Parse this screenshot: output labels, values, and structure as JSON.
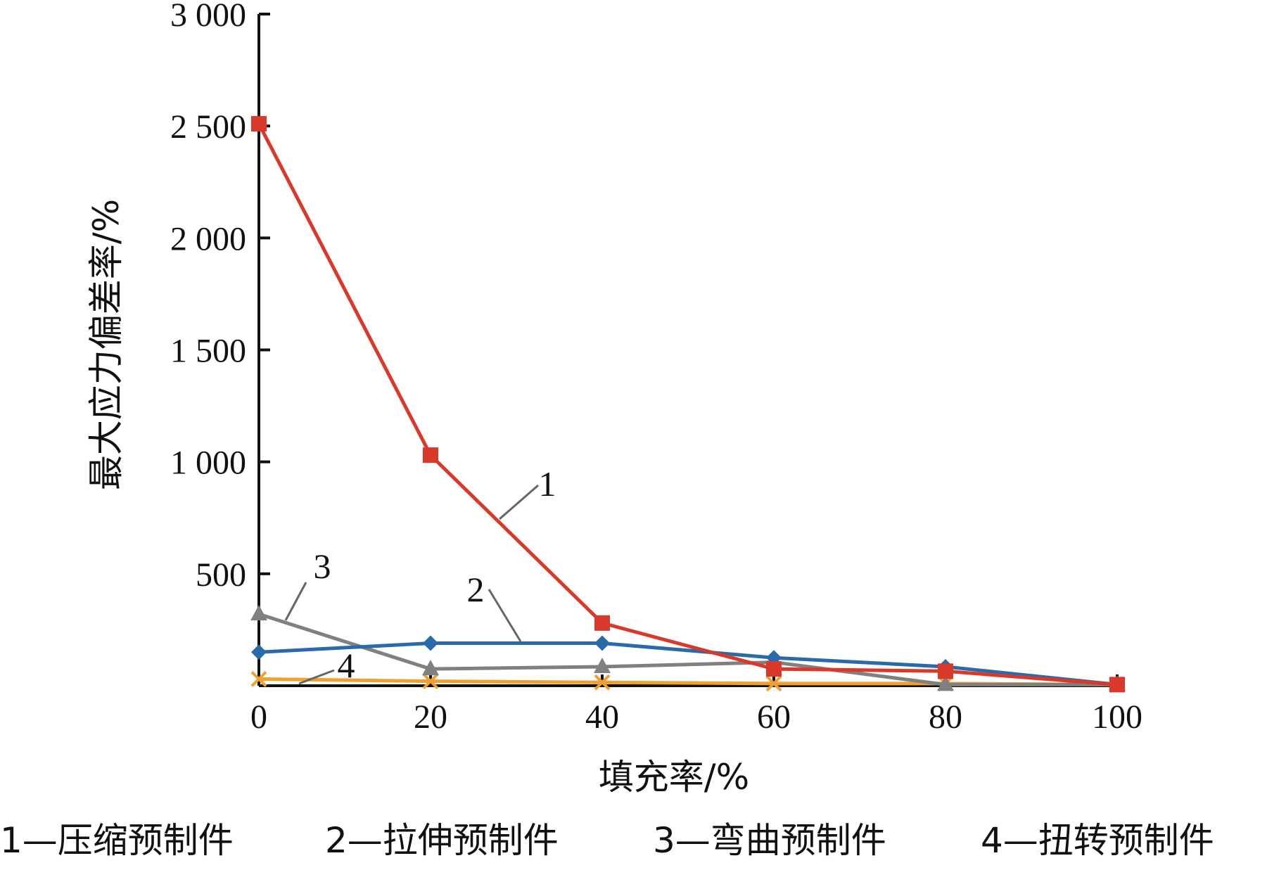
{
  "chart_data": {
    "type": "line",
    "title": "",
    "xlabel": "填充率/%",
    "ylabel": "最大应力偏差率/%",
    "xlim": [
      0,
      100
    ],
    "ylim": [
      0,
      3000
    ],
    "x": [
      0,
      20,
      40,
      60,
      80,
      100
    ],
    "x_ticks": [
      "0",
      "20",
      "40",
      "60",
      "80",
      "100"
    ],
    "y_ticks": [
      "500",
      "1 000",
      "1 500",
      "2 000",
      "2 500",
      "3 000"
    ],
    "y_tick_values": [
      500,
      1000,
      1500,
      2000,
      2500,
      3000
    ],
    "grid": false,
    "series": [
      {
        "name": "压缩预制件",
        "label": "1",
        "color": "#d9392b",
        "marker": "square",
        "values": [
          2510,
          1030,
          280,
          75,
          65,
          5
        ]
      },
      {
        "name": "拉伸预制件",
        "label": "2",
        "color": "#2a6aa8",
        "marker": "diamond",
        "values": [
          150,
          190,
          190,
          125,
          85,
          5
        ]
      },
      {
        "name": "弯曲预制件",
        "label": "3",
        "color": "#808080",
        "marker": "triangle",
        "values": [
          320,
          75,
          85,
          105,
          5,
          5
        ]
      },
      {
        "name": "扭转预制件",
        "label": "4",
        "color": "#f0a030",
        "marker": "x",
        "values": [
          30,
          20,
          15,
          10,
          10,
          5
        ]
      }
    ],
    "legend": {
      "position": "bottom",
      "items": [
        "1—压缩预制件",
        "2—拉伸预制件",
        "3—弯曲预制件",
        "4—扭转预制件"
      ]
    }
  }
}
